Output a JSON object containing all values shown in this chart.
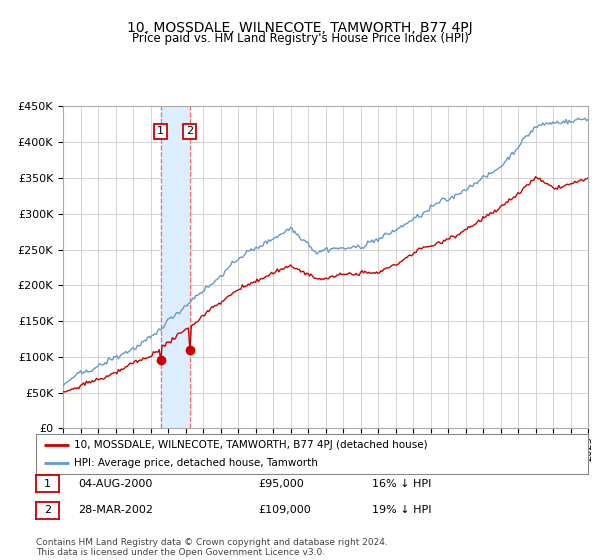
{
  "title": "10, MOSSDALE, WILNECOTE, TAMWORTH, B77 4PJ",
  "subtitle": "Price paid vs. HM Land Registry's House Price Index (HPI)",
  "ylim": [
    0,
    450000
  ],
  "yticks": [
    0,
    50000,
    100000,
    150000,
    200000,
    250000,
    300000,
    350000,
    400000,
    450000
  ],
  "ytick_labels": [
    "£0",
    "£50K",
    "£100K",
    "£150K",
    "£200K",
    "£250K",
    "£300K",
    "£350K",
    "£400K",
    "£450K"
  ],
  "hpi_color": "#6699cc",
  "price_color": "#cc0000",
  "transaction1": {
    "date_num": 2000.585,
    "price": 95000,
    "label": "1"
  },
  "transaction2": {
    "date_num": 2002.24,
    "price": 109000,
    "label": "2"
  },
  "legend_line1": "10, MOSSDALE, WILNECOTE, TAMWORTH, B77 4PJ (detached house)",
  "legend_line2": "HPI: Average price, detached house, Tamworth",
  "table_rows": [
    [
      "1",
      "04-AUG-2000",
      "£95,000",
      "16% ↓ HPI"
    ],
    [
      "2",
      "28-MAR-2002",
      "£109,000",
      "19% ↓ HPI"
    ]
  ],
  "footer": "Contains HM Land Registry data © Crown copyright and database right 2024.\nThis data is licensed under the Open Government Licence v3.0.",
  "background_color": "#ffffff",
  "grid_color": "#cccccc",
  "shade_color": "#ddeeff"
}
